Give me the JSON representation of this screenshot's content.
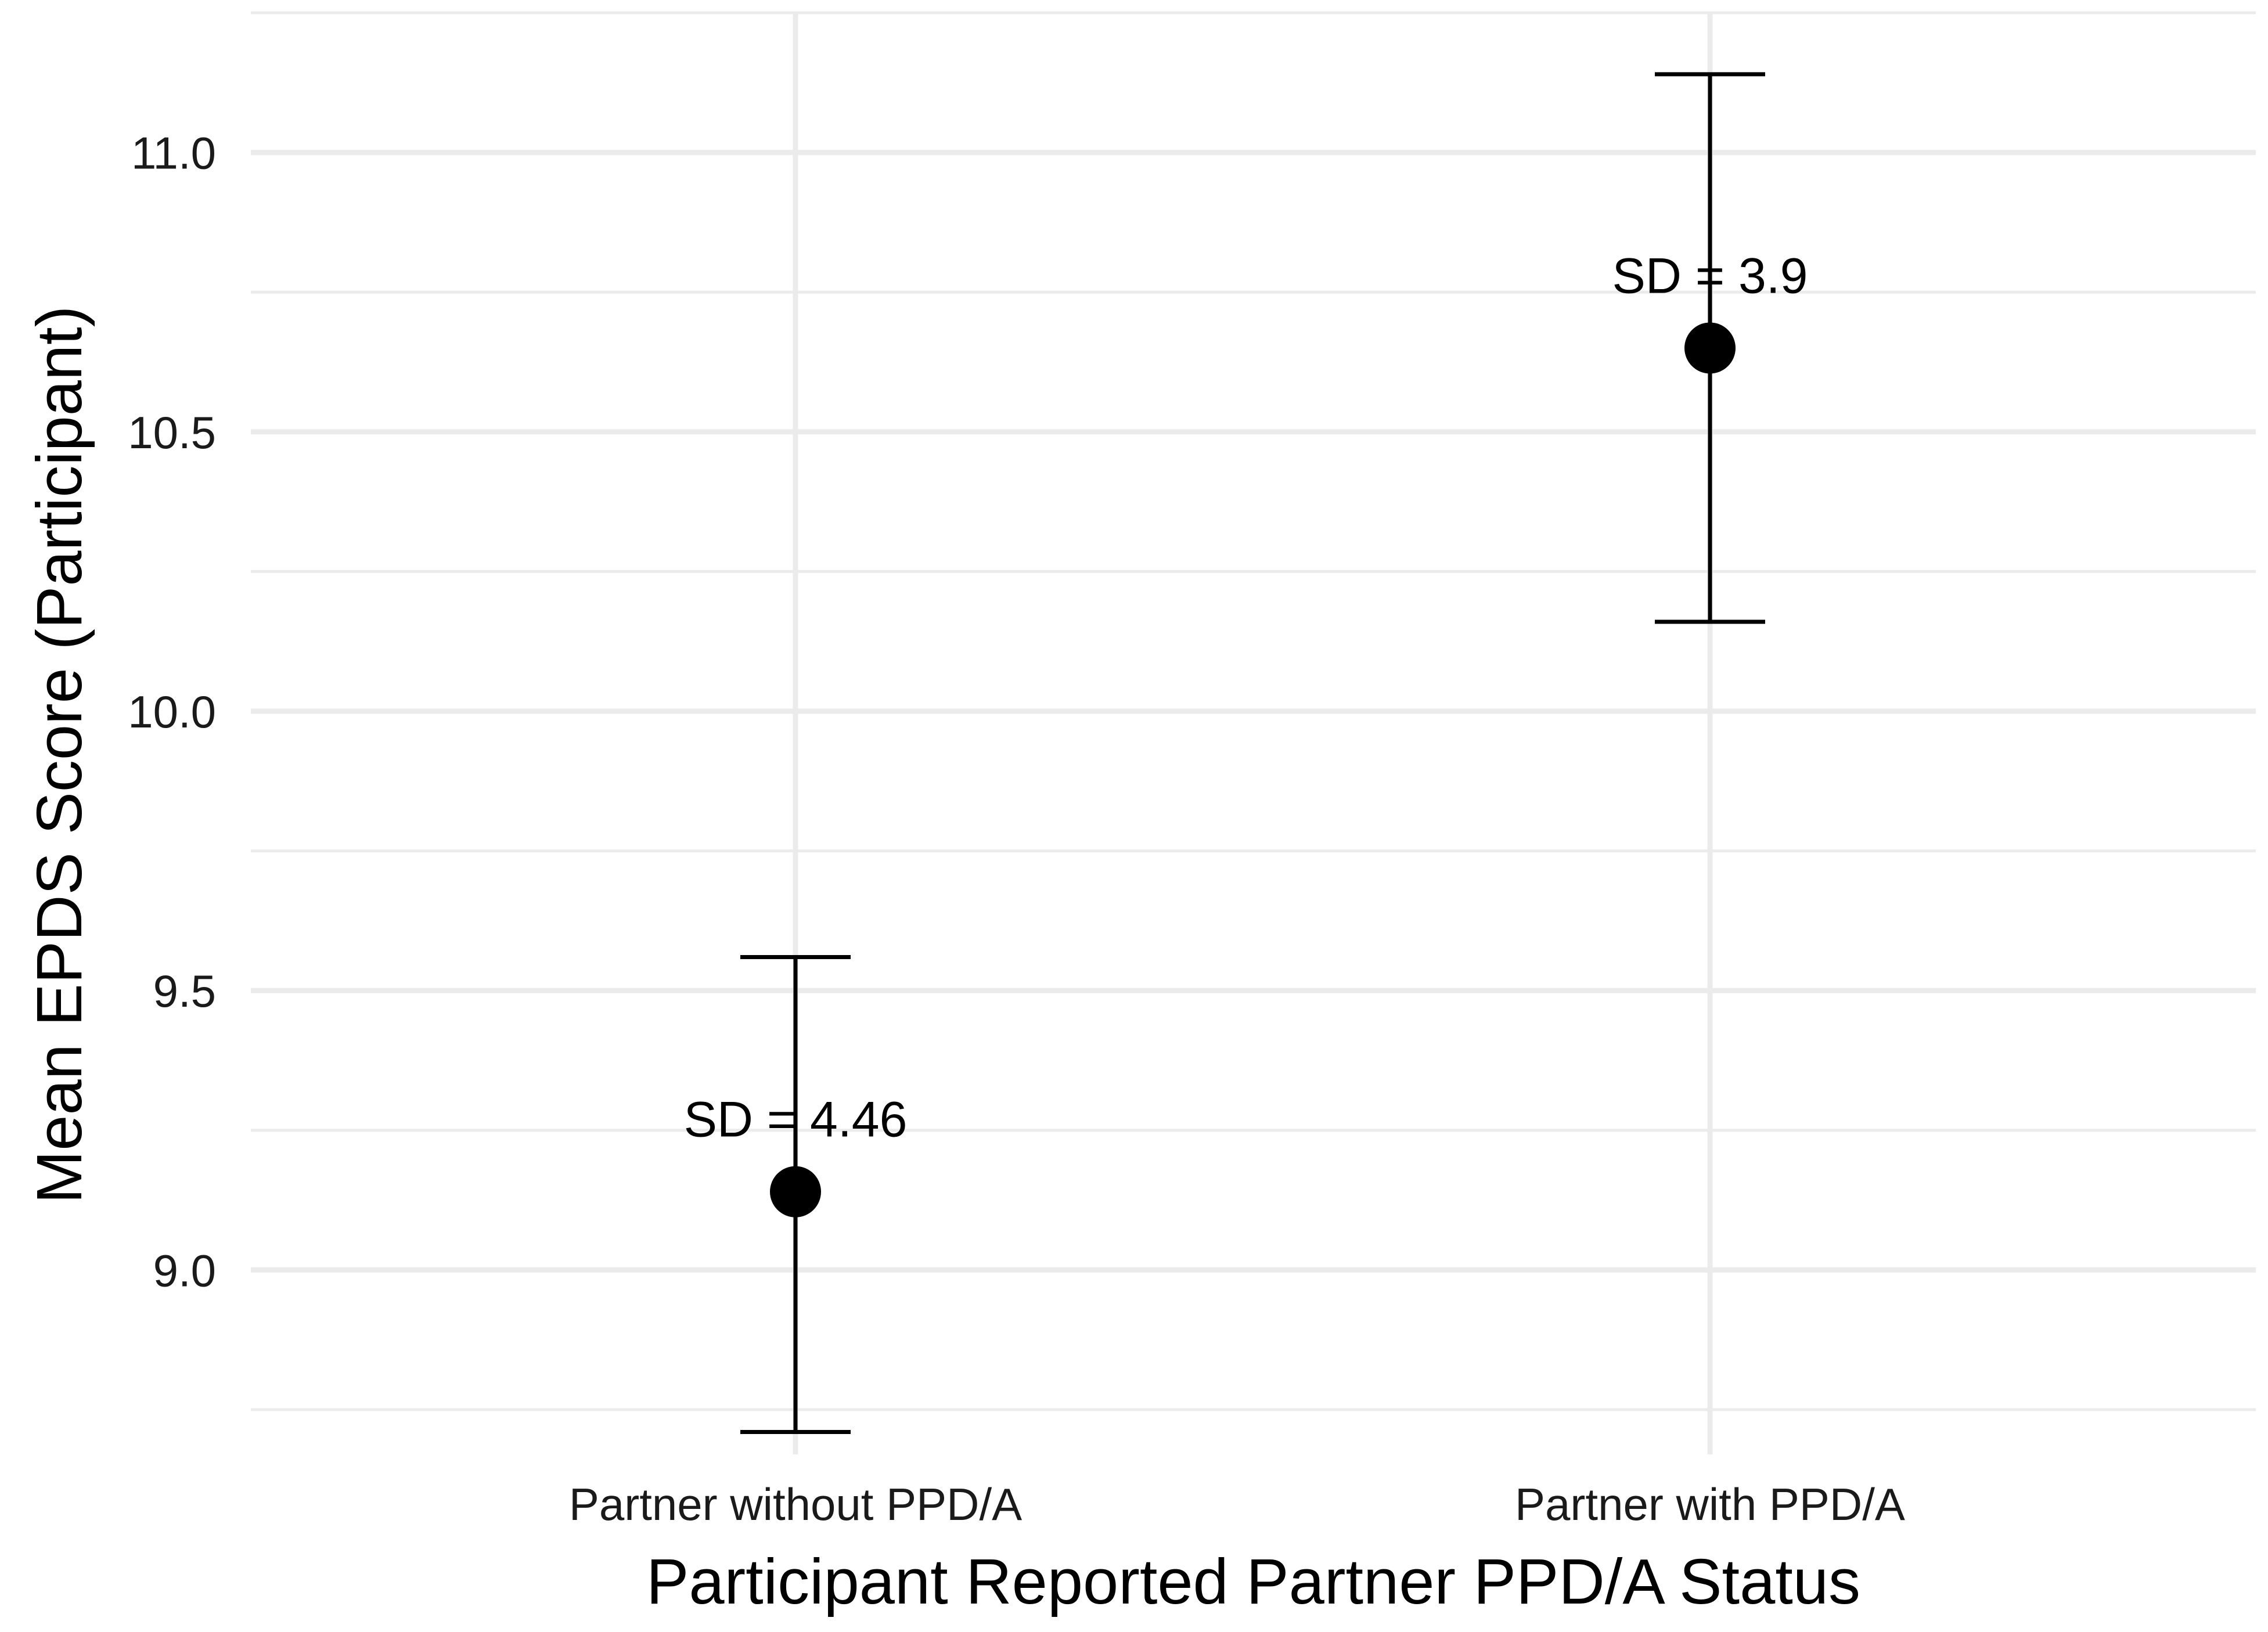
{
  "chart_data": {
    "type": "scatter",
    "title": "",
    "xlabel": "Participant Reported Partner PPD/A Status",
    "ylabel": "Mean EPDS Score (Participant)",
    "categories": [
      "Partner without PPD/A",
      "Partner with PPD/A"
    ],
    "ylim": [
      8.67,
      11.25
    ],
    "yticks": [
      9.0,
      9.5,
      10.0,
      10.5,
      11.0
    ],
    "ytick_labels": [
      "9.0",
      "9.5",
      "10.0",
      "10.5",
      "11.0"
    ],
    "grid": true,
    "legend": "none",
    "point_color": "#000000",
    "points": [
      {
        "category": "Partner without PPD/A",
        "mean": 9.14,
        "lower": 8.71,
        "upper": 9.56,
        "label": "SD = 4.46"
      },
      {
        "category": "Partner with PPD/A",
        "mean": 10.65,
        "lower": 10.16,
        "upper": 11.14,
        "label": "SD = 3.9"
      }
    ]
  }
}
